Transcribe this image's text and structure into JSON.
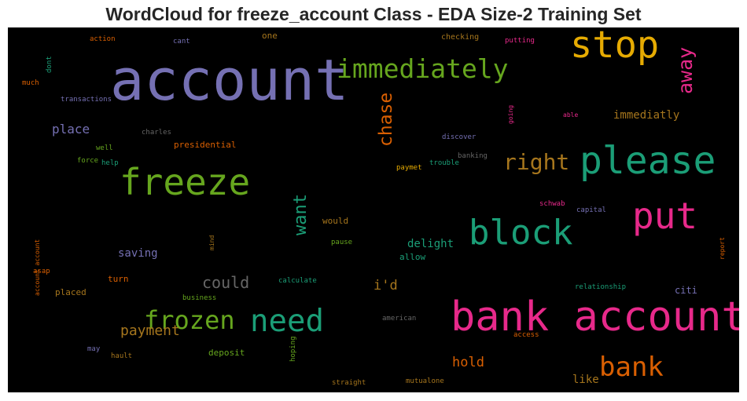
{
  "colors": {
    "background": "#000000",
    "purple": "#7570b3",
    "green": "#66a61e",
    "teal": "#1b9e77",
    "orange": "#d95f02",
    "pink": "#e7298a",
    "yellow": "#e6ab02",
    "brown": "#a6761d",
    "gray": "#666666"
  },
  "chart_data": {
    "type": "wordcloud",
    "title": "WordCloud for freeze_account Class - EDA Size-2 Training Set",
    "words": [
      {
        "text": "account",
        "color": "purple",
        "weight": 1.0
      },
      {
        "text": "bank account",
        "color": "pink",
        "weight": 0.92
      },
      {
        "text": "stop",
        "color": "yellow",
        "weight": 0.8
      },
      {
        "text": "please",
        "color": "teal",
        "weight": 0.8
      },
      {
        "text": "freeze",
        "color": "green",
        "weight": 0.77
      },
      {
        "text": "put",
        "color": "pink",
        "weight": 0.74
      },
      {
        "text": "block",
        "color": "teal",
        "weight": 0.73
      },
      {
        "text": "need",
        "color": "teal",
        "weight": 0.66
      },
      {
        "text": "frozen",
        "color": "green",
        "weight": 0.6
      },
      {
        "text": "bank",
        "color": "orange",
        "weight": 0.6
      },
      {
        "text": "immediately",
        "color": "green",
        "weight": 0.57
      },
      {
        "text": "right",
        "color": "brown",
        "weight": 0.48
      },
      {
        "text": "chase",
        "color": "orange",
        "weight": 0.42
      },
      {
        "text": "away",
        "color": "pink",
        "weight": 0.42
      },
      {
        "text": "want",
        "color": "teal",
        "weight": 0.4
      },
      {
        "text": "could",
        "color": "gray",
        "weight": 0.38
      },
      {
        "text": "payment",
        "color": "brown",
        "weight": 0.38
      },
      {
        "text": "hold",
        "color": "orange",
        "weight": 0.35
      },
      {
        "text": "place",
        "color": "purple",
        "weight": 0.34
      },
      {
        "text": "i'd",
        "color": "brown",
        "weight": 0.34
      },
      {
        "text": "immediatly",
        "color": "brown",
        "weight": 0.3
      },
      {
        "text": "saving",
        "color": "purple",
        "weight": 0.3
      },
      {
        "text": "delight",
        "color": "teal",
        "weight": 0.3
      },
      {
        "text": "like",
        "color": "brown",
        "weight": 0.3
      },
      {
        "text": "presidential",
        "color": "orange",
        "weight": 0.24
      },
      {
        "text": "one",
        "color": "brown",
        "weight": 0.22
      },
      {
        "text": "would",
        "color": "brown",
        "weight": 0.22
      },
      {
        "text": "allow",
        "color": "teal",
        "weight": 0.22
      },
      {
        "text": "citi",
        "color": "purple",
        "weight": 0.22
      },
      {
        "text": "deposit",
        "color": "green",
        "weight": 0.22
      },
      {
        "text": "turn",
        "color": "orange",
        "weight": 0.2
      },
      {
        "text": "placed",
        "color": "brown",
        "weight": 0.2
      },
      {
        "text": "checking",
        "color": "brown",
        "weight": 0.17
      },
      {
        "text": "putting",
        "color": "pink",
        "weight": 0.17
      },
      {
        "text": "action",
        "color": "orange",
        "weight": 0.16
      },
      {
        "text": "cant",
        "color": "purple",
        "weight": 0.16
      },
      {
        "text": "much",
        "color": "orange",
        "weight": 0.16
      },
      {
        "text": "dont",
        "color": "teal",
        "weight": 0.15
      },
      {
        "text": "transactions",
        "color": "purple",
        "weight": 0.16
      },
      {
        "text": "charles",
        "color": "gray",
        "weight": 0.16
      },
      {
        "text": "well",
        "color": "green",
        "weight": 0.16
      },
      {
        "text": "force",
        "color": "green",
        "weight": 0.16
      },
      {
        "text": "help",
        "color": "teal",
        "weight": 0.16
      },
      {
        "text": "discover",
        "color": "purple",
        "weight": 0.16
      },
      {
        "text": "going",
        "color": "pink",
        "weight": 0.15
      },
      {
        "text": "able",
        "color": "pink",
        "weight": 0.15
      },
      {
        "text": "banking",
        "color": "gray",
        "weight": 0.16
      },
      {
        "text": "trouble",
        "color": "teal",
        "weight": 0.16
      },
      {
        "text": "paymet",
        "color": "yellow",
        "weight": 0.16
      },
      {
        "text": "schwab",
        "color": "pink",
        "weight": 0.16
      },
      {
        "text": "capital",
        "color": "purple",
        "weight": 0.16
      },
      {
        "text": "pause",
        "color": "green",
        "weight": 0.16
      },
      {
        "text": "mind",
        "color": "brown",
        "weight": 0.15
      },
      {
        "text": "calculate",
        "color": "teal",
        "weight": 0.16
      },
      {
        "text": "asap",
        "color": "orange",
        "weight": 0.16
      },
      {
        "text": "business",
        "color": "green",
        "weight": 0.16
      },
      {
        "text": "relationship",
        "color": "teal",
        "weight": 0.16
      },
      {
        "text": "report",
        "color": "orange",
        "weight": 0.15
      },
      {
        "text": "account account",
        "color": "orange",
        "weight": 0.15
      },
      {
        "text": "american",
        "color": "gray",
        "weight": 0.16
      },
      {
        "text": "access",
        "color": "orange",
        "weight": 0.16
      },
      {
        "text": "may",
        "color": "purple",
        "weight": 0.16
      },
      {
        "text": "hault",
        "color": "brown",
        "weight": 0.16
      },
      {
        "text": "hoping",
        "color": "green",
        "weight": 0.15
      },
      {
        "text": "straight",
        "color": "brown",
        "weight": 0.16
      },
      {
        "text": "mutualone",
        "color": "brown",
        "weight": 0.16
      }
    ]
  }
}
